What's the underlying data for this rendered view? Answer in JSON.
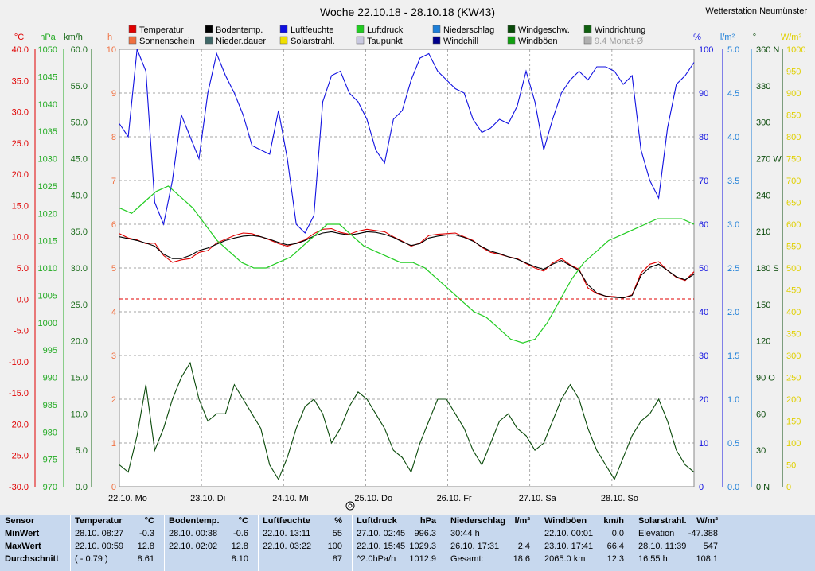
{
  "header": {
    "title": "Woche 22.10.18 - 28.10.18 (KW43)",
    "station": "Wetterstation Neumünster"
  },
  "legend": [
    {
      "label": "Temperatur",
      "color": "#e00000"
    },
    {
      "label": "Bodentemp.",
      "color": "#000000"
    },
    {
      "label": "Luftfeuchte",
      "color": "#1010e0"
    },
    {
      "label": "Luftdruck",
      "color": "#22cc22"
    },
    {
      "label": "Niederschlag",
      "color": "#1e7fd8"
    },
    {
      "label": "Windgeschw.",
      "color": "#0a4a0a"
    },
    {
      "label": "Windrichtung",
      "color": "#106010"
    },
    {
      "label": "Sonnenschein",
      "color": "#f07040"
    },
    {
      "label": "Nieder.dauer",
      "color": "#406868"
    },
    {
      "label": "Solarstrahl.",
      "color": "#f0e000"
    },
    {
      "label": "Taupunkt",
      "color": "#c8c8e0"
    },
    {
      "label": "Windchill",
      "color": "#00008b"
    },
    {
      "label": "Windböen",
      "color": "#10a010"
    },
    {
      "label": "9.4 Monat-Ø",
      "color": "#b0b0b0"
    }
  ],
  "axis_units": {
    "temp": "°C",
    "pressure": "hPa",
    "wind": "km/h",
    "hours": "h",
    "humidity": "%",
    "rain": "l/m²",
    "direction": "°",
    "solar": "W/m²"
  },
  "chart_data": {
    "type": "line",
    "x_labels": [
      "22.10. Mo",
      "23.10. Di",
      "24.10. Mi",
      "25.10. Do",
      "26.10. Fr",
      "27.10. Sa",
      "28.10. So"
    ],
    "axes": {
      "temp": {
        "range": [
          -30,
          40
        ],
        "ticks": [
          "40.0",
          "35.0",
          "30.0",
          "25.0",
          "20.0",
          "15.0",
          "10.0",
          "5.0",
          "0.0",
          "-5.0",
          "-10.0",
          "-15.0",
          "-20.0",
          "-25.0",
          "-30.0"
        ]
      },
      "pressure": {
        "range": [
          970,
          1050
        ],
        "ticks": [
          "1050",
          "1045",
          "1040",
          "1035",
          "1030",
          "1025",
          "1020",
          "1015",
          "1010",
          "1005",
          "1000",
          "995",
          "990",
          "985",
          "980",
          "975",
          "970"
        ]
      },
      "wind": {
        "range": [
          0,
          60
        ],
        "ticks": [
          "60.0",
          "55.0",
          "50.0",
          "45.0",
          "40.0",
          "35.0",
          "30.0",
          "25.0",
          "20.0",
          "15.0",
          "10.0",
          "5.0",
          "0.0"
        ]
      },
      "hours": {
        "range": [
          0,
          10
        ],
        "ticks": [
          "10",
          "9",
          "8",
          "7",
          "6",
          "5",
          "4",
          "3",
          "2",
          "1",
          "0"
        ]
      },
      "humidity": {
        "range": [
          0,
          100
        ],
        "ticks": [
          "100",
          "90",
          "80",
          "70",
          "60",
          "50",
          "40",
          "30",
          "20",
          "10",
          "0"
        ]
      },
      "rain": {
        "range": [
          0,
          5
        ],
        "ticks": [
          "5.0",
          "4.5",
          "4.0",
          "3.5",
          "3.0",
          "2.5",
          "2.0",
          "1.5",
          "1.0",
          "0.5",
          "0.0"
        ]
      },
      "direction": {
        "range": [
          0,
          360
        ],
        "ticks": [
          "360 N",
          "330",
          "300",
          "270 W",
          "240",
          "210",
          "180 S",
          "150",
          "120",
          "90 O",
          "60",
          "30",
          "0 N"
        ]
      },
      "solar": {
        "range": [
          0,
          1000
        ],
        "ticks": [
          "1000",
          "950",
          "900",
          "850",
          "800",
          "750",
          "700",
          "650",
          "600",
          "550",
          "500",
          "450",
          "400",
          "350",
          "300",
          "250",
          "200",
          "150",
          "100",
          "50",
          "0"
        ]
      }
    },
    "series": [
      {
        "name": "Temperatur",
        "unit": "°C",
        "values": [
          10.5,
          9.8,
          9.5,
          8.9,
          9.0,
          7.0,
          5.9,
          6.3,
          6.5,
          7.5,
          7.8,
          9.0,
          9.6,
          10.2,
          10.6,
          10.5,
          10.0,
          9.5,
          8.9,
          8.5,
          9.0,
          9.5,
          10.5,
          11.2,
          11.3,
          10.7,
          10.4,
          10.9,
          11.2,
          11.0,
          10.8,
          10.0,
          9.3,
          8.5,
          9.0,
          10.2,
          10.4,
          10.5,
          10.6,
          10.0,
          9.4,
          8.3,
          7.5,
          7.2,
          6.8,
          6.5,
          5.7,
          5.0,
          4.5,
          5.8,
          6.5,
          5.5,
          4.8,
          1.8,
          0.9,
          0.5,
          0.4,
          0.2,
          0.7,
          4.2,
          5.6,
          6.0,
          4.6,
          3.5,
          3.0,
          4.4
        ]
      },
      {
        "name": "Bodentemp.",
        "unit": "°C",
        "values": [
          10.0,
          9.7,
          9.4,
          9.0,
          8.5,
          7.2,
          6.5,
          6.5,
          7.0,
          7.8,
          8.2,
          8.8,
          9.4,
          9.8,
          10.1,
          10.2,
          10.0,
          9.6,
          9.1,
          8.7,
          8.9,
          9.4,
          10.1,
          10.6,
          10.8,
          10.5,
          10.3,
          10.5,
          10.8,
          10.7,
          10.4,
          9.9,
          9.2,
          8.6,
          8.9,
          9.8,
          10.1,
          10.3,
          10.3,
          9.9,
          9.3,
          8.4,
          7.7,
          7.3,
          6.8,
          6.4,
          5.8,
          5.2,
          4.8,
          5.6,
          6.2,
          5.4,
          4.6,
          2.3,
          1.0,
          0.5,
          0.3,
          0.2,
          0.6,
          3.8,
          5.1,
          5.6,
          4.6,
          3.6,
          3.1,
          4.0
        ]
      },
      {
        "name": "Luftfeuchte",
        "unit": "%",
        "values": [
          83,
          80,
          100,
          95,
          65,
          60,
          70,
          85,
          80,
          75,
          90,
          99,
          94,
          90,
          85,
          78,
          77,
          76,
          86,
          75,
          60,
          58,
          62,
          88,
          94,
          95,
          90,
          88,
          84,
          77,
          74,
          84,
          86,
          93,
          98,
          99,
          95,
          93,
          91,
          90,
          84,
          81,
          82,
          84,
          83,
          87,
          95,
          88,
          77,
          84,
          90,
          93,
          95,
          93,
          96,
          96,
          95,
          92,
          94,
          77,
          70,
          66,
          82,
          92,
          94,
          97
        ]
      },
      {
        "name": "Luftdruck",
        "unit": "hPa",
        "values": [
          1021,
          1020,
          1022,
          1024,
          1025,
          1023,
          1021,
          1018,
          1015,
          1013,
          1011,
          1010,
          1010,
          1011,
          1012,
          1014,
          1016,
          1018,
          1018,
          1016,
          1014,
          1013,
          1012,
          1011,
          1011,
          1010,
          1008,
          1006,
          1004,
          1002,
          1001,
          999,
          997,
          996.3,
          997,
          1000,
          1004,
          1008,
          1011,
          1013,
          1015,
          1016,
          1017,
          1018,
          1019,
          1019,
          1019,
          1018
        ]
      },
      {
        "name": "Windgeschw.",
        "unit": "km/h",
        "values": [
          3,
          2,
          7,
          14,
          5,
          8,
          12,
          15,
          17,
          12,
          9,
          10,
          10,
          14,
          12,
          10,
          8,
          3,
          1,
          4,
          8,
          11,
          12,
          10,
          6,
          8,
          11,
          13,
          12,
          10,
          8,
          5,
          4,
          2,
          6,
          9,
          12,
          12,
          10,
          8,
          5,
          3,
          6,
          9,
          10,
          8,
          7,
          5,
          6,
          9,
          12,
          14,
          12,
          8,
          5,
          3,
          1,
          4,
          7,
          9,
          10,
          12,
          9,
          5,
          3,
          2
        ]
      }
    ]
  },
  "stats": {
    "columns": [
      {
        "title": "Sensor",
        "unit": "",
        "rows": [
          "MinWert",
          "MaxWert",
          "Durchschnitt"
        ]
      },
      {
        "title": "Temperatur",
        "unit": "°C",
        "rows": [
          [
            "28.10. 08:27",
            "-0.3"
          ],
          [
            "22.10. 00:59",
            "12.8"
          ],
          [
            "( - 0.79 )",
            "8.61"
          ]
        ]
      },
      {
        "title": "Bodentemp.",
        "unit": "°C",
        "rows": [
          [
            "28.10. 00:38",
            "-0.6"
          ],
          [
            "22.10. 02:02",
            "12.8"
          ],
          [
            "",
            "8.10"
          ]
        ]
      },
      {
        "title": "Luftfeuchte",
        "unit": "%",
        "rows": [
          [
            "22.10. 13:11",
            "55"
          ],
          [
            "22.10. 03:22",
            "100"
          ],
          [
            "",
            "87"
          ]
        ]
      },
      {
        "title": "Luftdruck",
        "unit": "hPa",
        "rows": [
          [
            "27.10. 02:45",
            "996.3"
          ],
          [
            "22.10. 15:45",
            "1029.3"
          ],
          [
            "^2.0hPa/h",
            "1012.9"
          ]
        ]
      },
      {
        "title": "Niederschlag",
        "unit": "l/m²",
        "rows": [
          [
            "30:44 h",
            ""
          ],
          [
            "26.10. 17:31",
            "2.4"
          ],
          [
            "Gesamt:",
            "18.6"
          ]
        ]
      },
      {
        "title": "Windböen",
        "unit": "km/h",
        "rows": [
          [
            "22.10. 00:01",
            "0.0"
          ],
          [
            "23.10. 17:41",
            "66.4"
          ],
          [
            "2065.0 km",
            "12.3"
          ]
        ]
      },
      {
        "title": "Solarstrahl.",
        "unit": "W/m²",
        "rows": [
          [
            "Elevation",
            "-47.388"
          ],
          [
            "28.10. 11:39",
            "547"
          ],
          [
            "16:55 h",
            "108.1"
          ]
        ]
      }
    ]
  }
}
